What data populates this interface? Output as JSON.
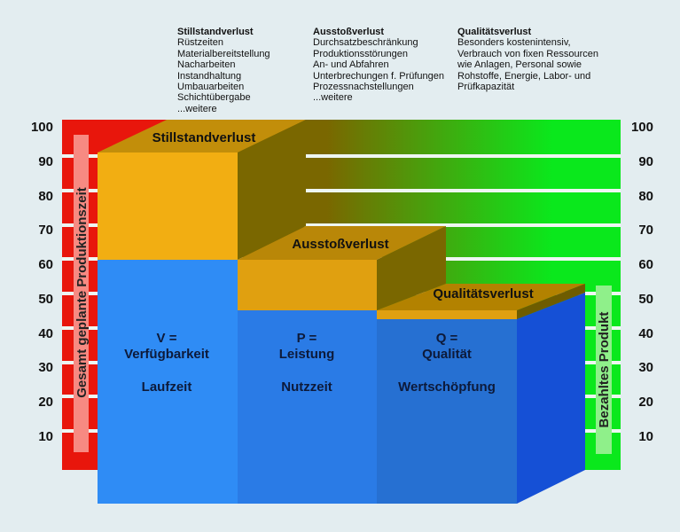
{
  "info_columns": [
    {
      "heading": "Stillstandverlust",
      "lines": [
        "Rüstzeiten",
        "Materialbereitstellung",
        "Nacharbeiten",
        "Instandhaltung",
        "Umbauarbeiten",
        "Schichtübergabe",
        "...weitere"
      ]
    },
    {
      "heading": "Ausstoßverlust",
      "lines": [
        "Durchsatzbeschränkung",
        "Produktionsstörungen",
        "An- und Abfahren",
        "Unterbrechungen f. Prüfungen",
        "Prozessnachstellungen",
        "...weitere"
      ]
    },
    {
      "heading": "Qualitätsverlust",
      "lines": [
        "Besonders kostenintensiv,",
        "Verbrauch von fixen Ressourcen",
        "wie Anlagen, Personal sowie",
        "Rohstoffe, Energie, Labor- und",
        "Prüfkapazität"
      ]
    }
  ],
  "axis_ticks": [
    "100",
    "90",
    "80",
    "70",
    "60",
    "50",
    "40",
    "30",
    "20",
    "10"
  ],
  "left_bar_label": "Gesamt geplante Produktionszeit",
  "right_bar_label": "Bezahltes Produkt",
  "loss_labels": {
    "stillstand": "Stillstandverlust",
    "ausstoss": "Ausstoßverlust",
    "qualitaet": "Qualitätsverlust"
  },
  "blocks": [
    {
      "line1": "V =",
      "line2": "Verfügbarkeit",
      "line3": "Laufzeit"
    },
    {
      "line1": "P =",
      "line2": "Leistung",
      "line3": "Nutzzeit"
    },
    {
      "line1": "Q =",
      "line2": "Qualität",
      "line3": "Wertschöpfung"
    }
  ],
  "colors": {
    "red": "#e8160c",
    "green": "#0ae81c",
    "olive": "#7a6700",
    "orange": "#f2ae12",
    "blue": "#2f8cf5"
  }
}
